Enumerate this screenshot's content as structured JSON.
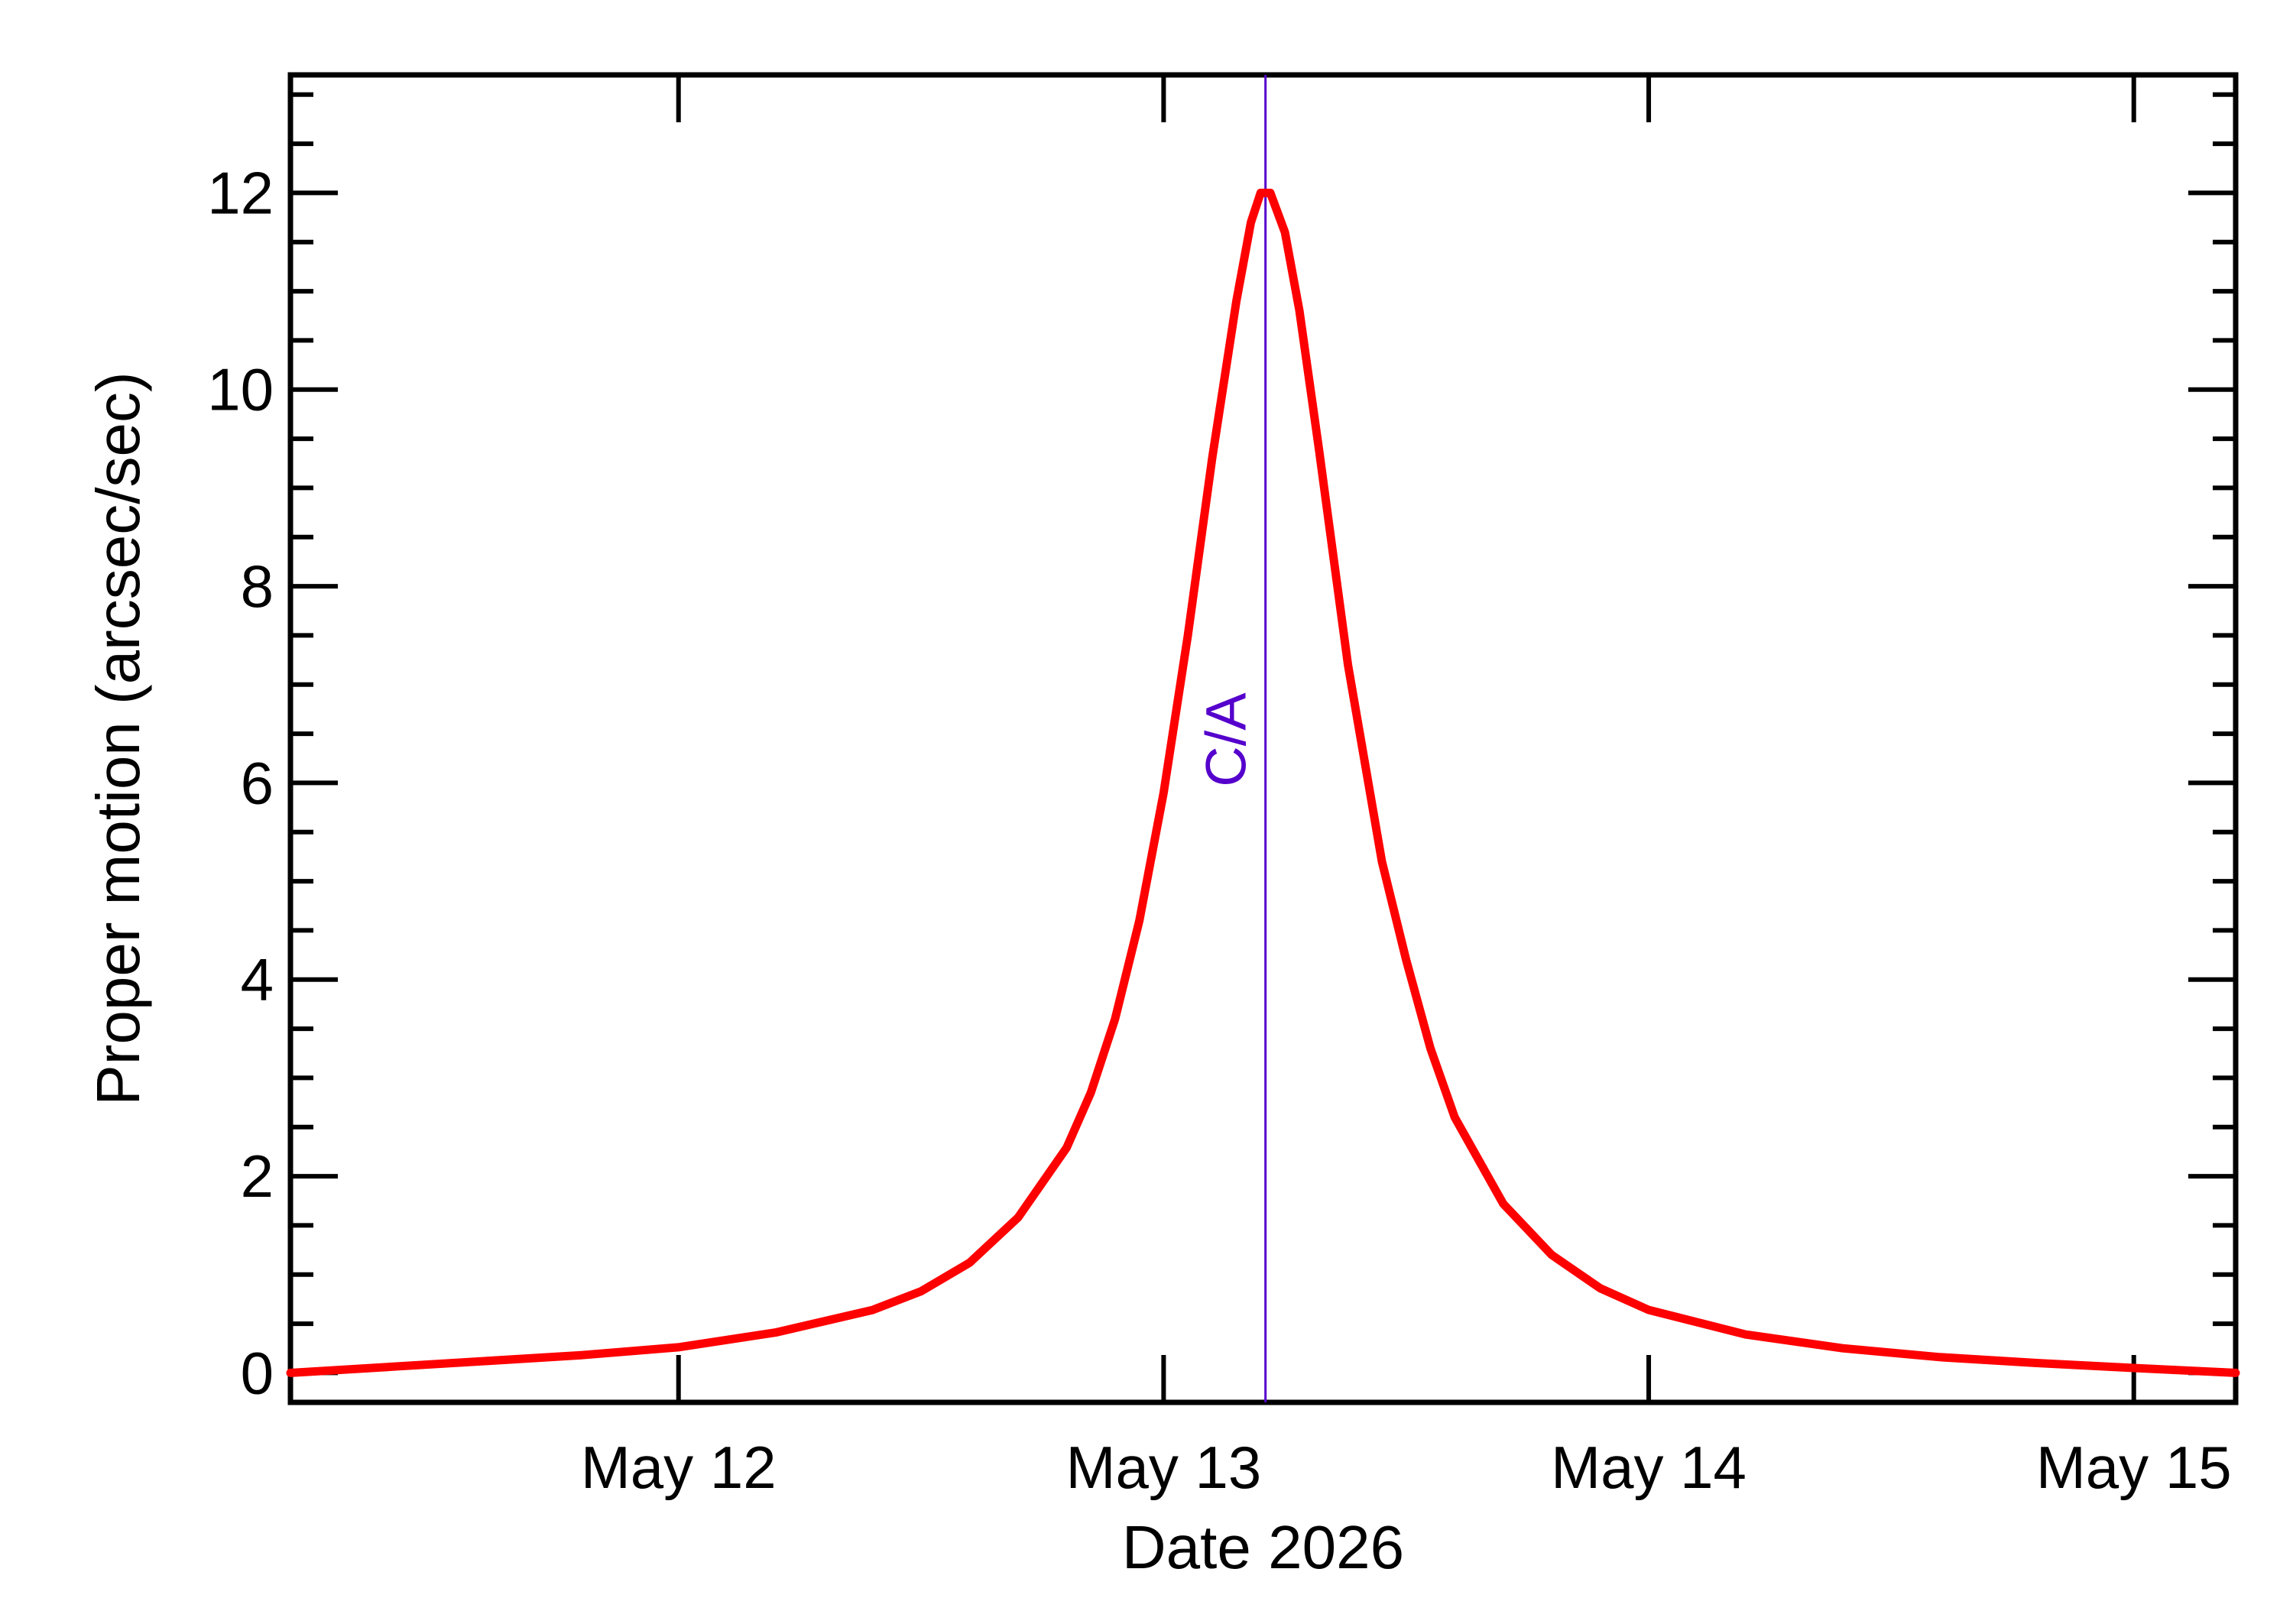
{
  "chart_data": {
    "type": "line",
    "title": "",
    "xlabel": "Date 2026",
    "ylabel": "Proper motion (arcsec/sec)",
    "x_unit": "days (May 12 = 12.0)",
    "xlim": [
      11.2,
      15.21
    ],
    "ylim": [
      -0.3,
      13.2
    ],
    "grid": false,
    "x_ticks": [
      {
        "value": 12,
        "label": "May 12"
      },
      {
        "value": 13,
        "label": "May 13"
      },
      {
        "value": 14,
        "label": "May 14"
      },
      {
        "value": 15,
        "label": "May 15"
      }
    ],
    "y_ticks": [
      {
        "value": 0,
        "label": "0"
      },
      {
        "value": 2,
        "label": "2"
      },
      {
        "value": 4,
        "label": "4"
      },
      {
        "value": 6,
        "label": "6"
      },
      {
        "value": 8,
        "label": "8"
      },
      {
        "value": 10,
        "label": "10"
      },
      {
        "value": 12,
        "label": "12"
      }
    ],
    "series": [
      {
        "color": "#ff0000",
        "points": [
          [
            11.2,
            0.0
          ],
          [
            11.4,
            0.06
          ],
          [
            11.6,
            0.12
          ],
          [
            11.8,
            0.18
          ],
          [
            12.0,
            0.26
          ],
          [
            12.2,
            0.41
          ],
          [
            12.4,
            0.64
          ],
          [
            12.5,
            0.83
          ],
          [
            12.6,
            1.12
          ],
          [
            12.7,
            1.58
          ],
          [
            12.8,
            2.29
          ],
          [
            12.85,
            2.85
          ],
          [
            12.9,
            3.6
          ],
          [
            12.95,
            4.6
          ],
          [
            13.0,
            5.9
          ],
          [
            13.05,
            7.5
          ],
          [
            13.1,
            9.3
          ],
          [
            13.15,
            10.9
          ],
          [
            13.18,
            11.7
          ],
          [
            13.2,
            12.0
          ],
          [
            13.22,
            12.0
          ],
          [
            13.25,
            11.6
          ],
          [
            13.28,
            10.8
          ],
          [
            13.32,
            9.4
          ],
          [
            13.38,
            7.2
          ],
          [
            13.45,
            5.2
          ],
          [
            13.5,
            4.2
          ],
          [
            13.55,
            3.3
          ],
          [
            13.6,
            2.6
          ],
          [
            13.7,
            1.72
          ],
          [
            13.8,
            1.2
          ],
          [
            13.9,
            0.86
          ],
          [
            14.0,
            0.64
          ],
          [
            14.2,
            0.39
          ],
          [
            14.4,
            0.25
          ],
          [
            14.6,
            0.16
          ],
          [
            14.8,
            0.1
          ],
          [
            15.0,
            0.05
          ],
          [
            15.21,
            0.0
          ]
        ]
      }
    ],
    "annotations": [
      {
        "x": 13.21,
        "label": "C/A",
        "color": "#5500cc"
      }
    ]
  }
}
